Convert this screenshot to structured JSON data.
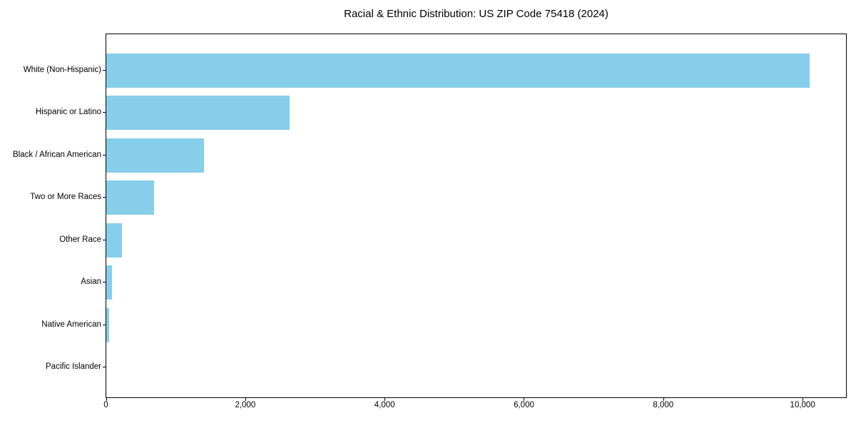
{
  "chart_data": {
    "type": "bar",
    "orientation": "horizontal",
    "title": "Racial & Ethnic Distribution: US ZIP Code 75418 (2024)",
    "categories": [
      "White (Non-Hispanic)",
      "Hispanic or Latino",
      "Black / African American",
      "Two or More Races",
      "Other Race",
      "Asian",
      "Native American",
      "Pacific Islander"
    ],
    "values": [
      10100,
      2630,
      1400,
      690,
      230,
      80,
      45,
      0
    ],
    "bar_color": "#87CEEB",
    "xlabel": "",
    "ylabel": "",
    "xlim": [
      0,
      10618
    ],
    "x_ticks": [
      0,
      2000,
      4000,
      6000,
      8000,
      10000
    ],
    "x_tick_labels": [
      "0",
      "2,000",
      "4,000",
      "6,000",
      "8,000",
      "10,000"
    ],
    "grid": false,
    "legend": null,
    "axis_color": "#000000",
    "background_color": "#ffffff"
  }
}
